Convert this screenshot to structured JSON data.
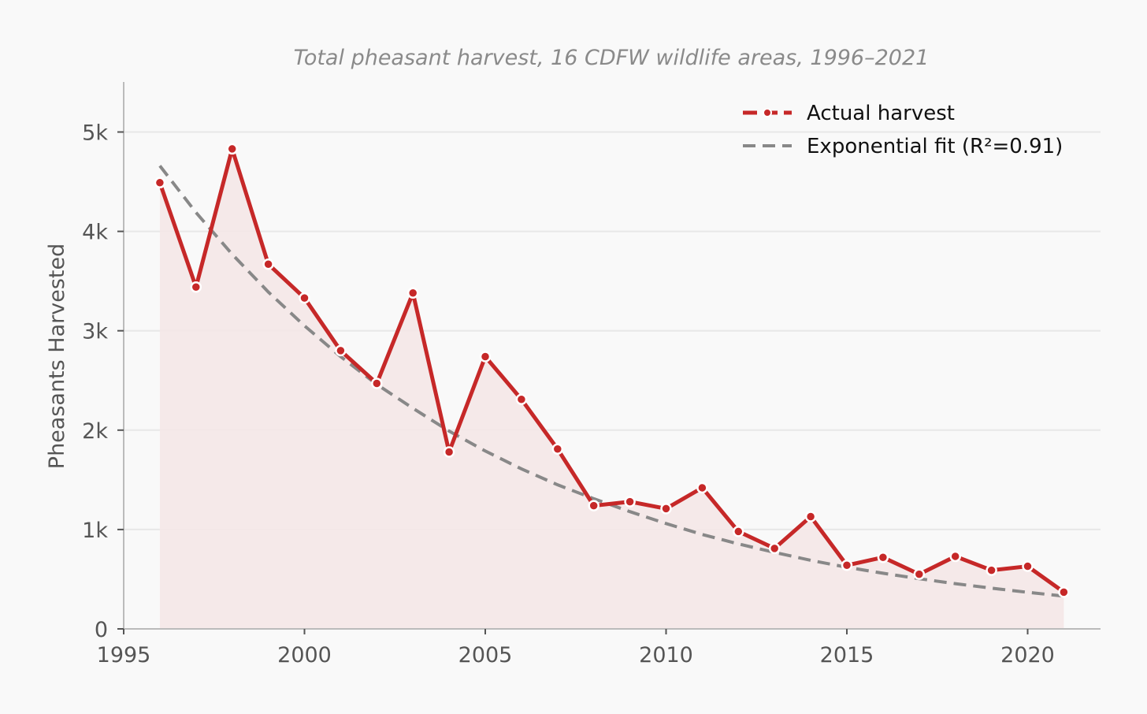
{
  "chart_data": {
    "type": "line",
    "title": "Total pheasant harvest, 16 CDFW wildlife areas, 1996–2021",
    "xlabel": "",
    "ylabel": "Pheasants Harvested",
    "xlim": [
      1995,
      2022
    ],
    "ylim": [
      0,
      5500
    ],
    "x_ticks": [
      1995,
      2000,
      2005,
      2010,
      2015,
      2020
    ],
    "y_ticks": [
      0,
      1000,
      2000,
      3000,
      4000,
      5000
    ],
    "y_tick_labels": [
      "0",
      "1k",
      "2k",
      "3k",
      "4k",
      "5k"
    ],
    "grid": "horizontal",
    "legend_position": "top-right",
    "colors": {
      "actual": "#c62828",
      "fill": "#f5e6e6",
      "fit": "#888888",
      "grid": "#e8e8e8",
      "axis": "#bbbbbb"
    },
    "x": [
      1996,
      1997,
      1998,
      1999,
      2000,
      2001,
      2002,
      2003,
      2004,
      2005,
      2006,
      2007,
      2008,
      2009,
      2010,
      2011,
      2012,
      2013,
      2014,
      2015,
      2016,
      2017,
      2018,
      2019,
      2020,
      2021
    ],
    "series": [
      {
        "name": "Actual harvest",
        "style": "solid-with-markers",
        "values": [
          4490,
          3440,
          4830,
          3670,
          3330,
          2800,
          2470,
          3380,
          1780,
          2740,
          2310,
          1810,
          1240,
          1280,
          1210,
          1420,
          980,
          810,
          1130,
          640,
          720,
          550,
          730,
          590,
          630,
          370
        ]
      },
      {
        "name": "Exponential fit (R²=0.91)",
        "style": "dashed",
        "values": [
          4660,
          4190,
          3770,
          3390,
          3050,
          2740,
          2460,
          2220,
          1990,
          1790,
          1610,
          1450,
          1310,
          1180,
          1060,
          950,
          855,
          770,
          690,
          620,
          560,
          505,
          455,
          410,
          368,
          330
        ]
      }
    ]
  }
}
